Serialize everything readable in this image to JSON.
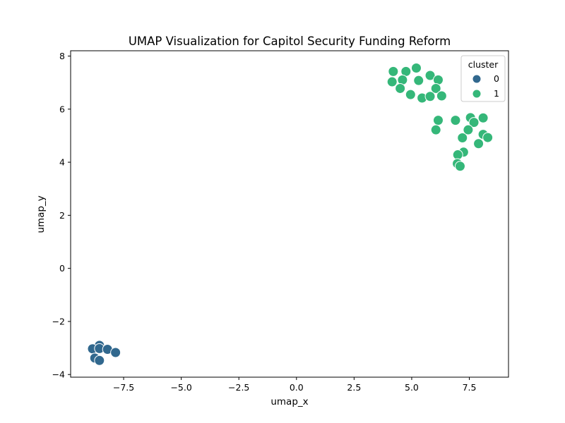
{
  "chart_data": {
    "type": "scatter",
    "title": "UMAP Visualization for Capitol Security Funding Reform",
    "xlabel": "umap_x",
    "ylabel": "umap_y",
    "xlim": [
      -9.8,
      9.2
    ],
    "ylim": [
      -4.1,
      8.2
    ],
    "xticks": [
      -7.5,
      -5.0,
      -2.5,
      0.0,
      2.5,
      5.0,
      7.5
    ],
    "xtick_labels": [
      "−7.5",
      "−5.0",
      "−2.5",
      "0.0",
      "2.5",
      "5.0",
      "7.5"
    ],
    "yticks": [
      -4,
      -2,
      0,
      2,
      4,
      6,
      8
    ],
    "ytick_labels": [
      "−4",
      "−2",
      "0",
      "2",
      "4",
      "6",
      "8"
    ],
    "grid": false,
    "legend": {
      "title": "cluster",
      "placement": "top-right",
      "entries": [
        {
          "label": "0",
          "color": "#31688e"
        },
        {
          "label": "1",
          "color": "#35b779"
        }
      ]
    },
    "series": [
      {
        "name": "0",
        "color": "#31688e",
        "points": [
          [
            -8.55,
            -2.9
          ],
          [
            -8.85,
            -3.03
          ],
          [
            -8.55,
            -3.02
          ],
          [
            -8.2,
            -3.05
          ],
          [
            -7.85,
            -3.17
          ],
          [
            -8.75,
            -3.38
          ],
          [
            -8.55,
            -3.47
          ]
        ]
      },
      {
        "name": "1",
        "color": "#35b779",
        "points": [
          [
            4.2,
            7.42
          ],
          [
            4.75,
            7.42
          ],
          [
            5.2,
            7.55
          ],
          [
            5.8,
            7.27
          ],
          [
            4.6,
            7.1
          ],
          [
            5.3,
            7.08
          ],
          [
            6.15,
            7.1
          ],
          [
            4.15,
            7.03
          ],
          [
            4.5,
            6.78
          ],
          [
            6.05,
            6.78
          ],
          [
            4.95,
            6.55
          ],
          [
            5.45,
            6.42
          ],
          [
            5.8,
            6.48
          ],
          [
            6.3,
            6.5
          ],
          [
            6.15,
            5.58
          ],
          [
            6.9,
            5.58
          ],
          [
            7.55,
            5.68
          ],
          [
            8.1,
            5.67
          ],
          [
            7.7,
            5.5
          ],
          [
            6.05,
            5.22
          ],
          [
            7.45,
            5.22
          ],
          [
            8.1,
            5.05
          ],
          [
            8.3,
            4.93
          ],
          [
            7.2,
            4.92
          ],
          [
            7.9,
            4.7
          ],
          [
            7.25,
            4.38
          ],
          [
            7.0,
            4.28
          ],
          [
            6.98,
            3.95
          ],
          [
            7.1,
            3.85
          ]
        ]
      }
    ]
  }
}
